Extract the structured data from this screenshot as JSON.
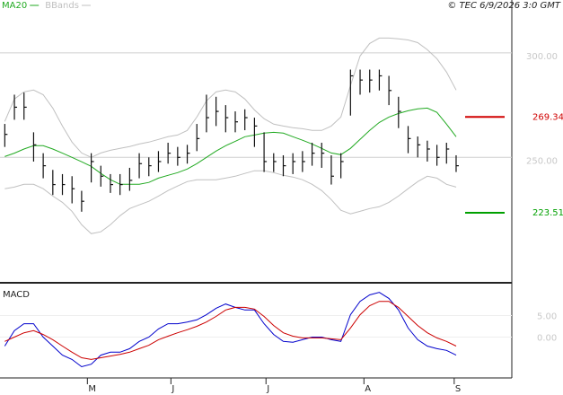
{
  "chart_data": {
    "type": "ohlc",
    "stamp": "© TEC 6/9/2026 3:0 GMT",
    "legend": [
      {
        "name": "MA20",
        "color": "#22aa22"
      },
      {
        "name": "BBands",
        "color": "#c0c0c0"
      }
    ],
    "xlim": [
      -0.5,
      52.8
    ],
    "xticks": [
      {
        "value": 8.6,
        "label": "M"
      },
      {
        "value": 17.3,
        "label": "J"
      },
      {
        "value": 27.2,
        "label": "J"
      },
      {
        "value": 37.4,
        "label": "A"
      },
      {
        "value": 46.8,
        "label": "S"
      }
    ],
    "ylim": [
      190,
      321
    ],
    "yticks": [
      {
        "value": 250,
        "label": "250.00"
      },
      {
        "value": 300,
        "label": "300.00"
      }
    ],
    "close": [
      261,
      274,
      274,
      256,
      246,
      237,
      237,
      235,
      229,
      248,
      241,
      237,
      237,
      239,
      247,
      246,
      248,
      252,
      250,
      252,
      259,
      269,
      272,
      269,
      267,
      269,
      265,
      248,
      248,
      246,
      248,
      248,
      252,
      252,
      241,
      248,
      289,
      287,
      287,
      289,
      282,
      272,
      259,
      256,
      254,
      250,
      254,
      246
    ],
    "high": [
      266,
      280,
      281,
      262,
      252,
      244,
      242,
      241,
      234,
      252,
      246,
      242,
      242,
      245,
      252,
      250,
      253,
      257,
      255,
      256,
      266,
      280,
      279,
      275,
      272,
      273,
      269,
      262,
      252,
      251,
      252,
      253,
      257,
      257,
      251,
      252,
      292,
      292,
      292,
      292,
      289,
      279,
      265,
      260,
      258,
      256,
      257,
      251
    ],
    "low": [
      255,
      268,
      268,
      248,
      240,
      232,
      232,
      228,
      224,
      238,
      236,
      233,
      232,
      234,
      240,
      241,
      243,
      247,
      246,
      247,
      253,
      262,
      265,
      262,
      262,
      263,
      255,
      243,
      243,
      241,
      242,
      243,
      246,
      245,
      237,
      240,
      270,
      280,
      281,
      282,
      275,
      264,
      252,
      250,
      248,
      246,
      247,
      243
    ],
    "ma20": [
      250.4,
      252,
      254,
      255.6,
      255.6,
      254,
      252,
      250,
      247.9,
      245.7,
      242.3,
      239.3,
      237.1,
      237.1,
      237.1,
      238,
      240.1,
      241.4,
      242.7,
      244.4,
      247,
      250,
      253,
      255.6,
      257.7,
      259.9,
      260.7,
      261.6,
      262,
      261.6,
      259.9,
      258.2,
      256.4,
      254.3,
      252.1,
      251.3,
      254.3,
      258.6,
      262.9,
      266.7,
      269.3,
      271,
      272.3,
      273.2,
      273.6,
      271.5,
      265.9,
      259.9
    ],
    "band_upper": [
      267.2,
      277.9,
      281.3,
      282.2,
      280,
      273.6,
      265,
      257.3,
      252.1,
      250,
      252.1,
      253.4,
      254.3,
      255.2,
      256.4,
      257.3,
      258.6,
      259.9,
      260.7,
      262.9,
      269.3,
      277,
      281.3,
      282.2,
      281.3,
      277.9,
      272.7,
      268.5,
      265.9,
      265,
      264.2,
      263.7,
      262.9,
      262.9,
      265,
      269.3,
      284.3,
      298.5,
      304.5,
      307.1,
      307.1,
      306.7,
      306.2,
      304.9,
      301.5,
      297.2,
      290.8,
      282.2
    ],
    "band_lower": [
      235,
      235.8,
      237.1,
      237.1,
      235,
      231.5,
      228.5,
      224.2,
      217.8,
      213.5,
      214.4,
      217.8,
      222.1,
      225.5,
      227.3,
      229,
      231.5,
      234.1,
      236.3,
      238.4,
      239.3,
      239.3,
      239.3,
      240.1,
      241,
      242.3,
      243.6,
      243.6,
      242.7,
      241.4,
      240.6,
      239.3,
      237.1,
      234.1,
      229.8,
      224.7,
      223,
      224.2,
      225.5,
      226.4,
      228.5,
      231.5,
      235,
      238.4,
      241,
      240.1,
      237.1,
      235.8
    ],
    "levels": [
      {
        "value": 269.34,
        "color": "#d00000"
      },
      {
        "value": 223.51,
        "color": "#00a000"
      }
    ],
    "macd": {
      "title": "MACD",
      "ylim": [
        -9.5,
        12
      ],
      "yticks": [
        {
          "value": 5,
          "label": "5.00"
        },
        {
          "value": 0,
          "label": "0.00"
        }
      ],
      "series": [
        {
          "color": "#0000cc",
          "values": [
            -2.1,
            1.5,
            3.1,
            3.1,
            0,
            -2.1,
            -4.2,
            -5.2,
            -6.9,
            -6.3,
            -4.2,
            -3.5,
            -3.5,
            -2.7,
            -1,
            0,
            1.9,
            3.1,
            3.1,
            3.5,
            4,
            5.2,
            6.7,
            7.7,
            6.9,
            6.3,
            6.3,
            3.1,
            0.6,
            -1,
            -1.2,
            -0.6,
            0,
            0,
            -0.6,
            -1,
            5.2,
            8.3,
            9.8,
            10.4,
            9,
            6.3,
            2.1,
            -0.6,
            -2.1,
            -2.7,
            -3.1,
            -4.2
          ]
        },
        {
          "color": "#cc0000",
          "values": [
            -1,
            0,
            1,
            1.5,
            0.6,
            -0.6,
            -2.1,
            -3.5,
            -4.8,
            -5.2,
            -4.8,
            -4.4,
            -4,
            -3.5,
            -2.7,
            -1.9,
            -0.6,
            0.2,
            1,
            1.7,
            2.5,
            3.5,
            4.8,
            6.3,
            6.9,
            6.9,
            6.5,
            4.8,
            2.7,
            1,
            0.2,
            -0.2,
            -0.2,
            -0.2,
            -0.4,
            -0.6,
            2.1,
            5.2,
            7.3,
            8.3,
            8.3,
            6.9,
            4.8,
            2.7,
            1,
            -0.2,
            -1,
            -2.1
          ]
        }
      ]
    }
  }
}
